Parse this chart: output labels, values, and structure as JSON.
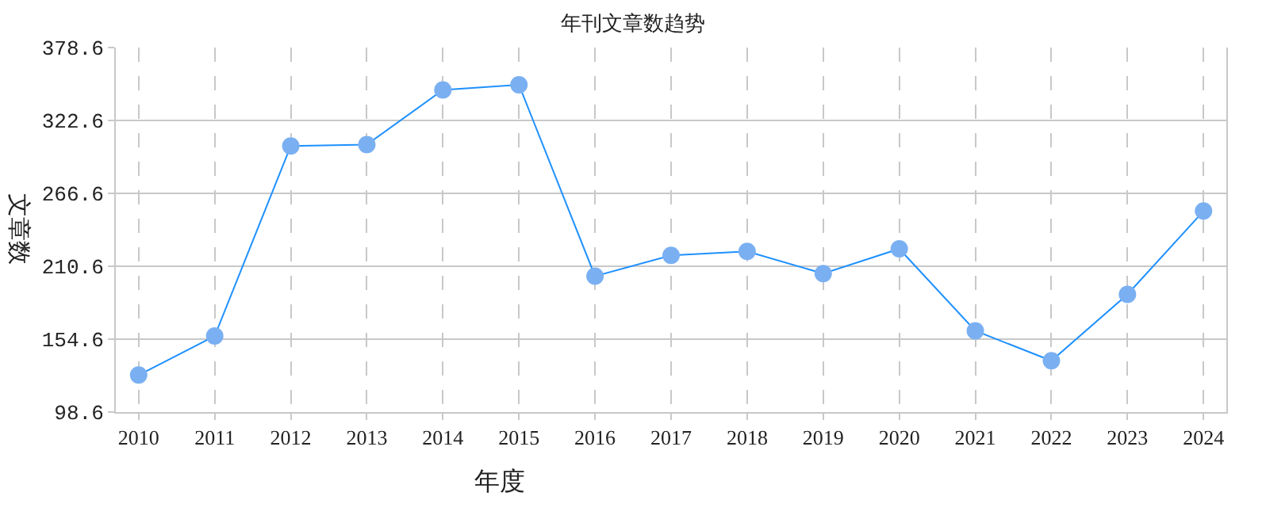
{
  "chart_data": {
    "type": "line",
    "title": "年刊文章数趋势",
    "xlabel": "年度",
    "ylabel": "文章数",
    "x": [
      2010,
      2011,
      2012,
      2013,
      2014,
      2015,
      2016,
      2017,
      2018,
      2019,
      2020,
      2021,
      2022,
      2023,
      2024
    ],
    "xlim": [
      2009.7,
      2024.3
    ],
    "xticks": [
      2010,
      2011,
      2012,
      2013,
      2014,
      2015,
      2016,
      2017,
      2018,
      2019,
      2020,
      2021,
      2022,
      2023,
      2024
    ],
    "series": [
      {
        "color": "#1e90ff",
        "values": [
          127,
          157,
          303,
          304,
          346,
          350,
          203,
          219,
          222,
          205,
          224,
          161,
          138,
          189,
          253
        ]
      }
    ],
    "ylim": [
      98.6,
      378.6
    ],
    "yticks": [
      98.6,
      154.6,
      210.6,
      266.6,
      322.6,
      378.6
    ],
    "grid": true,
    "marker": "circle",
    "line_style": "solid"
  }
}
